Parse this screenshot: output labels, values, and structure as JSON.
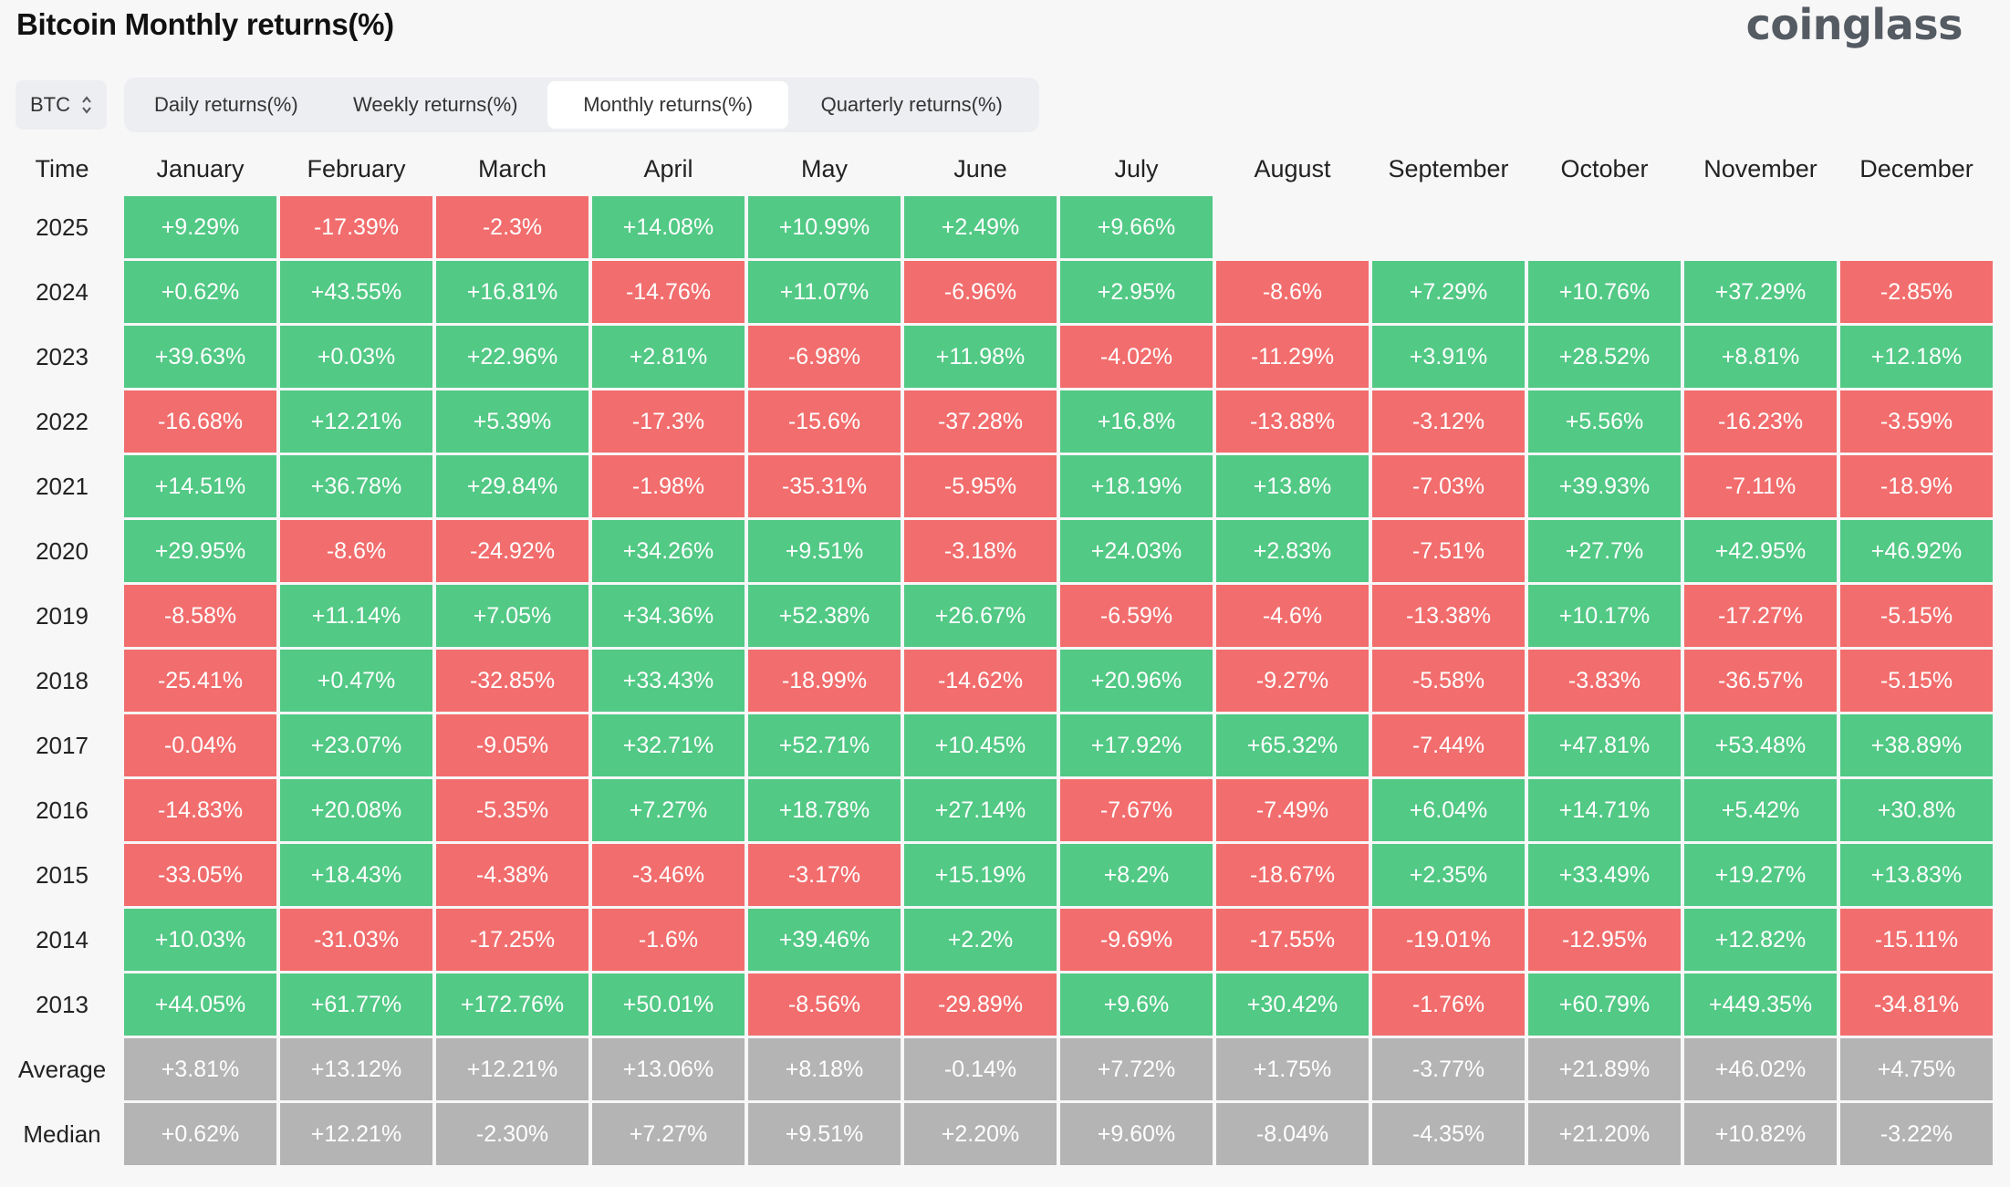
{
  "title": "Bitcoin Monthly returns(%)",
  "brand": "coinglass",
  "asset_select": {
    "value": "BTC"
  },
  "tabs": [
    {
      "label": "Daily returns(%)",
      "active": false
    },
    {
      "label": "Weekly returns(%)",
      "active": false
    },
    {
      "label": "Monthly returns(%)",
      "active": true
    },
    {
      "label": "Quarterly returns(%)",
      "active": false
    }
  ],
  "colors": {
    "positive": "#52c985",
    "negative": "#f26d6d",
    "summary": "#b4b4b4"
  },
  "table": {
    "corner_label": "Time",
    "months": [
      "January",
      "February",
      "March",
      "April",
      "May",
      "June",
      "July",
      "August",
      "September",
      "October",
      "November",
      "December"
    ],
    "rows": [
      {
        "label": "2025",
        "values": [
          "+9.29%",
          "-17.39%",
          "-2.3%",
          "+14.08%",
          "+10.99%",
          "+2.49%",
          "+9.66%",
          "",
          "",
          "",
          "",
          ""
        ]
      },
      {
        "label": "2024",
        "values": [
          "+0.62%",
          "+43.55%",
          "+16.81%",
          "-14.76%",
          "+11.07%",
          "-6.96%",
          "+2.95%",
          "-8.6%",
          "+7.29%",
          "+10.76%",
          "+37.29%",
          "-2.85%"
        ]
      },
      {
        "label": "2023",
        "values": [
          "+39.63%",
          "+0.03%",
          "+22.96%",
          "+2.81%",
          "-6.98%",
          "+11.98%",
          "-4.02%",
          "-11.29%",
          "+3.91%",
          "+28.52%",
          "+8.81%",
          "+12.18%"
        ]
      },
      {
        "label": "2022",
        "values": [
          "-16.68%",
          "+12.21%",
          "+5.39%",
          "-17.3%",
          "-15.6%",
          "-37.28%",
          "+16.8%",
          "-13.88%",
          "-3.12%",
          "+5.56%",
          "-16.23%",
          "-3.59%"
        ]
      },
      {
        "label": "2021",
        "values": [
          "+14.51%",
          "+36.78%",
          "+29.84%",
          "-1.98%",
          "-35.31%",
          "-5.95%",
          "+18.19%",
          "+13.8%",
          "-7.03%",
          "+39.93%",
          "-7.11%",
          "-18.9%"
        ]
      },
      {
        "label": "2020",
        "values": [
          "+29.95%",
          "-8.6%",
          "-24.92%",
          "+34.26%",
          "+9.51%",
          "-3.18%",
          "+24.03%",
          "+2.83%",
          "-7.51%",
          "+27.7%",
          "+42.95%",
          "+46.92%"
        ]
      },
      {
        "label": "2019",
        "values": [
          "-8.58%",
          "+11.14%",
          "+7.05%",
          "+34.36%",
          "+52.38%",
          "+26.67%",
          "-6.59%",
          "-4.6%",
          "-13.38%",
          "+10.17%",
          "-17.27%",
          "-5.15%"
        ]
      },
      {
        "label": "2018",
        "values": [
          "-25.41%",
          "+0.47%",
          "-32.85%",
          "+33.43%",
          "-18.99%",
          "-14.62%",
          "+20.96%",
          "-9.27%",
          "-5.58%",
          "-3.83%",
          "-36.57%",
          "-5.15%"
        ]
      },
      {
        "label": "2017",
        "values": [
          "-0.04%",
          "+23.07%",
          "-9.05%",
          "+32.71%",
          "+52.71%",
          "+10.45%",
          "+17.92%",
          "+65.32%",
          "-7.44%",
          "+47.81%",
          "+53.48%",
          "+38.89%"
        ]
      },
      {
        "label": "2016",
        "values": [
          "-14.83%",
          "+20.08%",
          "-5.35%",
          "+7.27%",
          "+18.78%",
          "+27.14%",
          "-7.67%",
          "-7.49%",
          "+6.04%",
          "+14.71%",
          "+5.42%",
          "+30.8%"
        ]
      },
      {
        "label": "2015",
        "values": [
          "-33.05%",
          "+18.43%",
          "-4.38%",
          "-3.46%",
          "-3.17%",
          "+15.19%",
          "+8.2%",
          "-18.67%",
          "+2.35%",
          "+33.49%",
          "+19.27%",
          "+13.83%"
        ]
      },
      {
        "label": "2014",
        "values": [
          "+10.03%",
          "-31.03%",
          "-17.25%",
          "-1.6%",
          "+39.46%",
          "+2.2%",
          "-9.69%",
          "-17.55%",
          "-19.01%",
          "-12.95%",
          "+12.82%",
          "-15.11%"
        ]
      },
      {
        "label": "2013",
        "values": [
          "+44.05%",
          "+61.77%",
          "+172.76%",
          "+50.01%",
          "-8.56%",
          "-29.89%",
          "+9.6%",
          "+30.42%",
          "-1.76%",
          "+60.79%",
          "+449.35%",
          "-34.81%"
        ]
      }
    ],
    "summary_rows": [
      {
        "label": "Average",
        "values": [
          "+3.81%",
          "+13.12%",
          "+12.21%",
          "+13.06%",
          "+8.18%",
          "-0.14%",
          "+7.72%",
          "+1.75%",
          "-3.77%",
          "+21.89%",
          "+46.02%",
          "+4.75%"
        ]
      },
      {
        "label": "Median",
        "values": [
          "+0.62%",
          "+12.21%",
          "-2.30%",
          "+7.27%",
          "+9.51%",
          "+2.20%",
          "+9.60%",
          "-8.04%",
          "-4.35%",
          "+21.20%",
          "+10.82%",
          "-3.22%"
        ]
      }
    ]
  }
}
